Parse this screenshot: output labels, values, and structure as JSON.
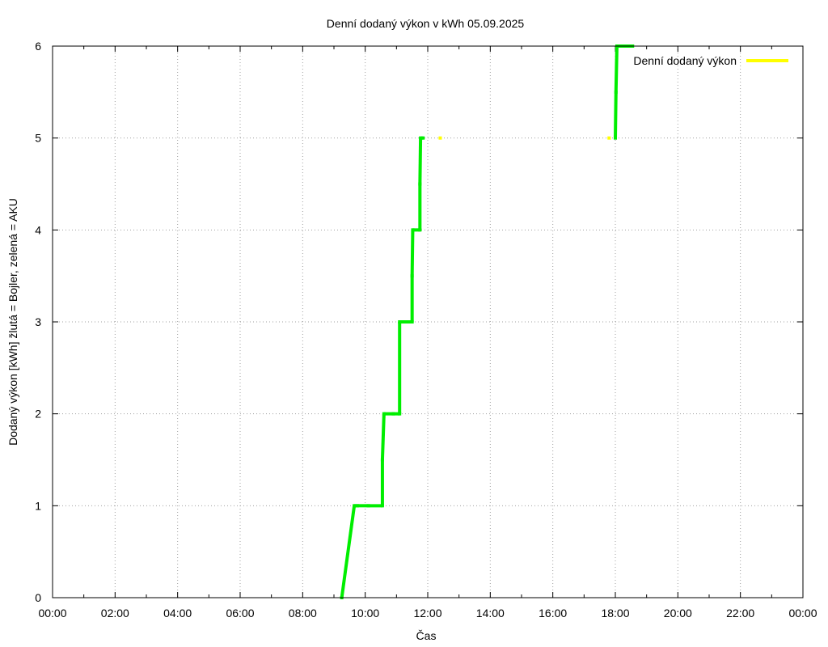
{
  "chart_data": {
    "type": "line",
    "title": "Denní dodaný výkon v kWh 05.09.2025",
    "xlabel": "Čas",
    "ylabel": "Dodaný výkon [kWh]  žlutá = Bojler, zelená = AKU",
    "xlim": [
      0,
      24
    ],
    "ylim": [
      0,
      6
    ],
    "x_ticks": [
      0,
      2,
      4,
      6,
      8,
      10,
      12,
      14,
      16,
      18,
      20,
      22,
      24
    ],
    "x_tick_labels": [
      "00:00",
      "02:00",
      "04:00",
      "06:00",
      "08:00",
      "10:00",
      "12:00",
      "14:00",
      "16:00",
      "18:00",
      "20:00",
      "22:00",
      "00:00"
    ],
    "y_ticks": [
      0,
      1,
      2,
      3,
      4,
      5,
      6
    ],
    "y_tick_labels": [
      "0",
      "1",
      "2",
      "3",
      "4",
      "5",
      "6"
    ],
    "grid": true,
    "legend_position": "top-right",
    "series": [
      {
        "name": "Denní dodaný výkon",
        "color": "#ffff00",
        "points": [
          [
            12.4,
            5.0
          ],
          [
            17.8,
            5.0
          ]
        ]
      },
      {
        "color": "#00ee00",
        "points": [
          [
            9.25,
            0.0
          ],
          [
            9.65,
            1.0
          ],
          [
            9.75,
            1.0
          ],
          [
            10.1,
            1.0
          ],
          [
            10.55,
            1.0
          ],
          [
            10.55,
            1.5
          ],
          [
            10.6,
            2.0
          ],
          [
            10.9,
            2.0
          ],
          [
            11.1,
            2.0
          ],
          [
            11.1,
            3.0
          ],
          [
            11.3,
            3.0
          ],
          [
            11.5,
            3.0
          ],
          [
            11.5,
            3.5
          ],
          [
            11.52,
            4.0
          ],
          [
            11.75,
            4.0
          ],
          [
            11.75,
            4.5
          ],
          [
            11.77,
            5.0
          ],
          [
            11.85,
            5.0
          ],
          [
            18.0,
            5.0
          ],
          [
            18.02,
            5.5
          ],
          [
            18.05,
            6.0
          ],
          [
            18.2,
            6.0
          ],
          [
            18.3,
            6.0
          ],
          [
            18.45,
            6.0
          ],
          [
            18.55,
            6.0
          ]
        ]
      }
    ]
  }
}
